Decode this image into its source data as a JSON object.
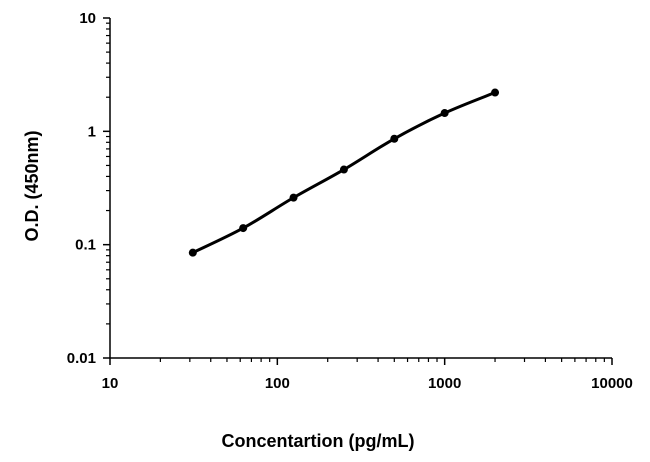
{
  "chart_data": {
    "type": "line",
    "title": "",
    "xlabel": "Concentartion (pg/mL)",
    "ylabel": "O.D. (450nm)",
    "x_scale": "log",
    "y_scale": "log",
    "xlim": [
      10,
      10000
    ],
    "ylim": [
      0.01,
      10
    ],
    "x_ticks": [
      10,
      100,
      1000,
      10000
    ],
    "x_tick_labels": [
      "10",
      "100",
      "1000",
      "10000"
    ],
    "y_ticks": [
      0.01,
      0.1,
      1,
      10
    ],
    "y_tick_labels": [
      "0.01",
      "0.1",
      "1",
      "10"
    ],
    "grid": false,
    "legend": "none",
    "series": [
      {
        "x": [
          31.25,
          62.5,
          125,
          250,
          500,
          1000,
          2000
        ],
        "y": [
          0.085,
          0.14,
          0.26,
          0.46,
          0.86,
          1.45,
          2.2
        ]
      }
    ],
    "colors": {
      "line": "#000000",
      "marker": "#000000",
      "axis": "#000000"
    }
  }
}
